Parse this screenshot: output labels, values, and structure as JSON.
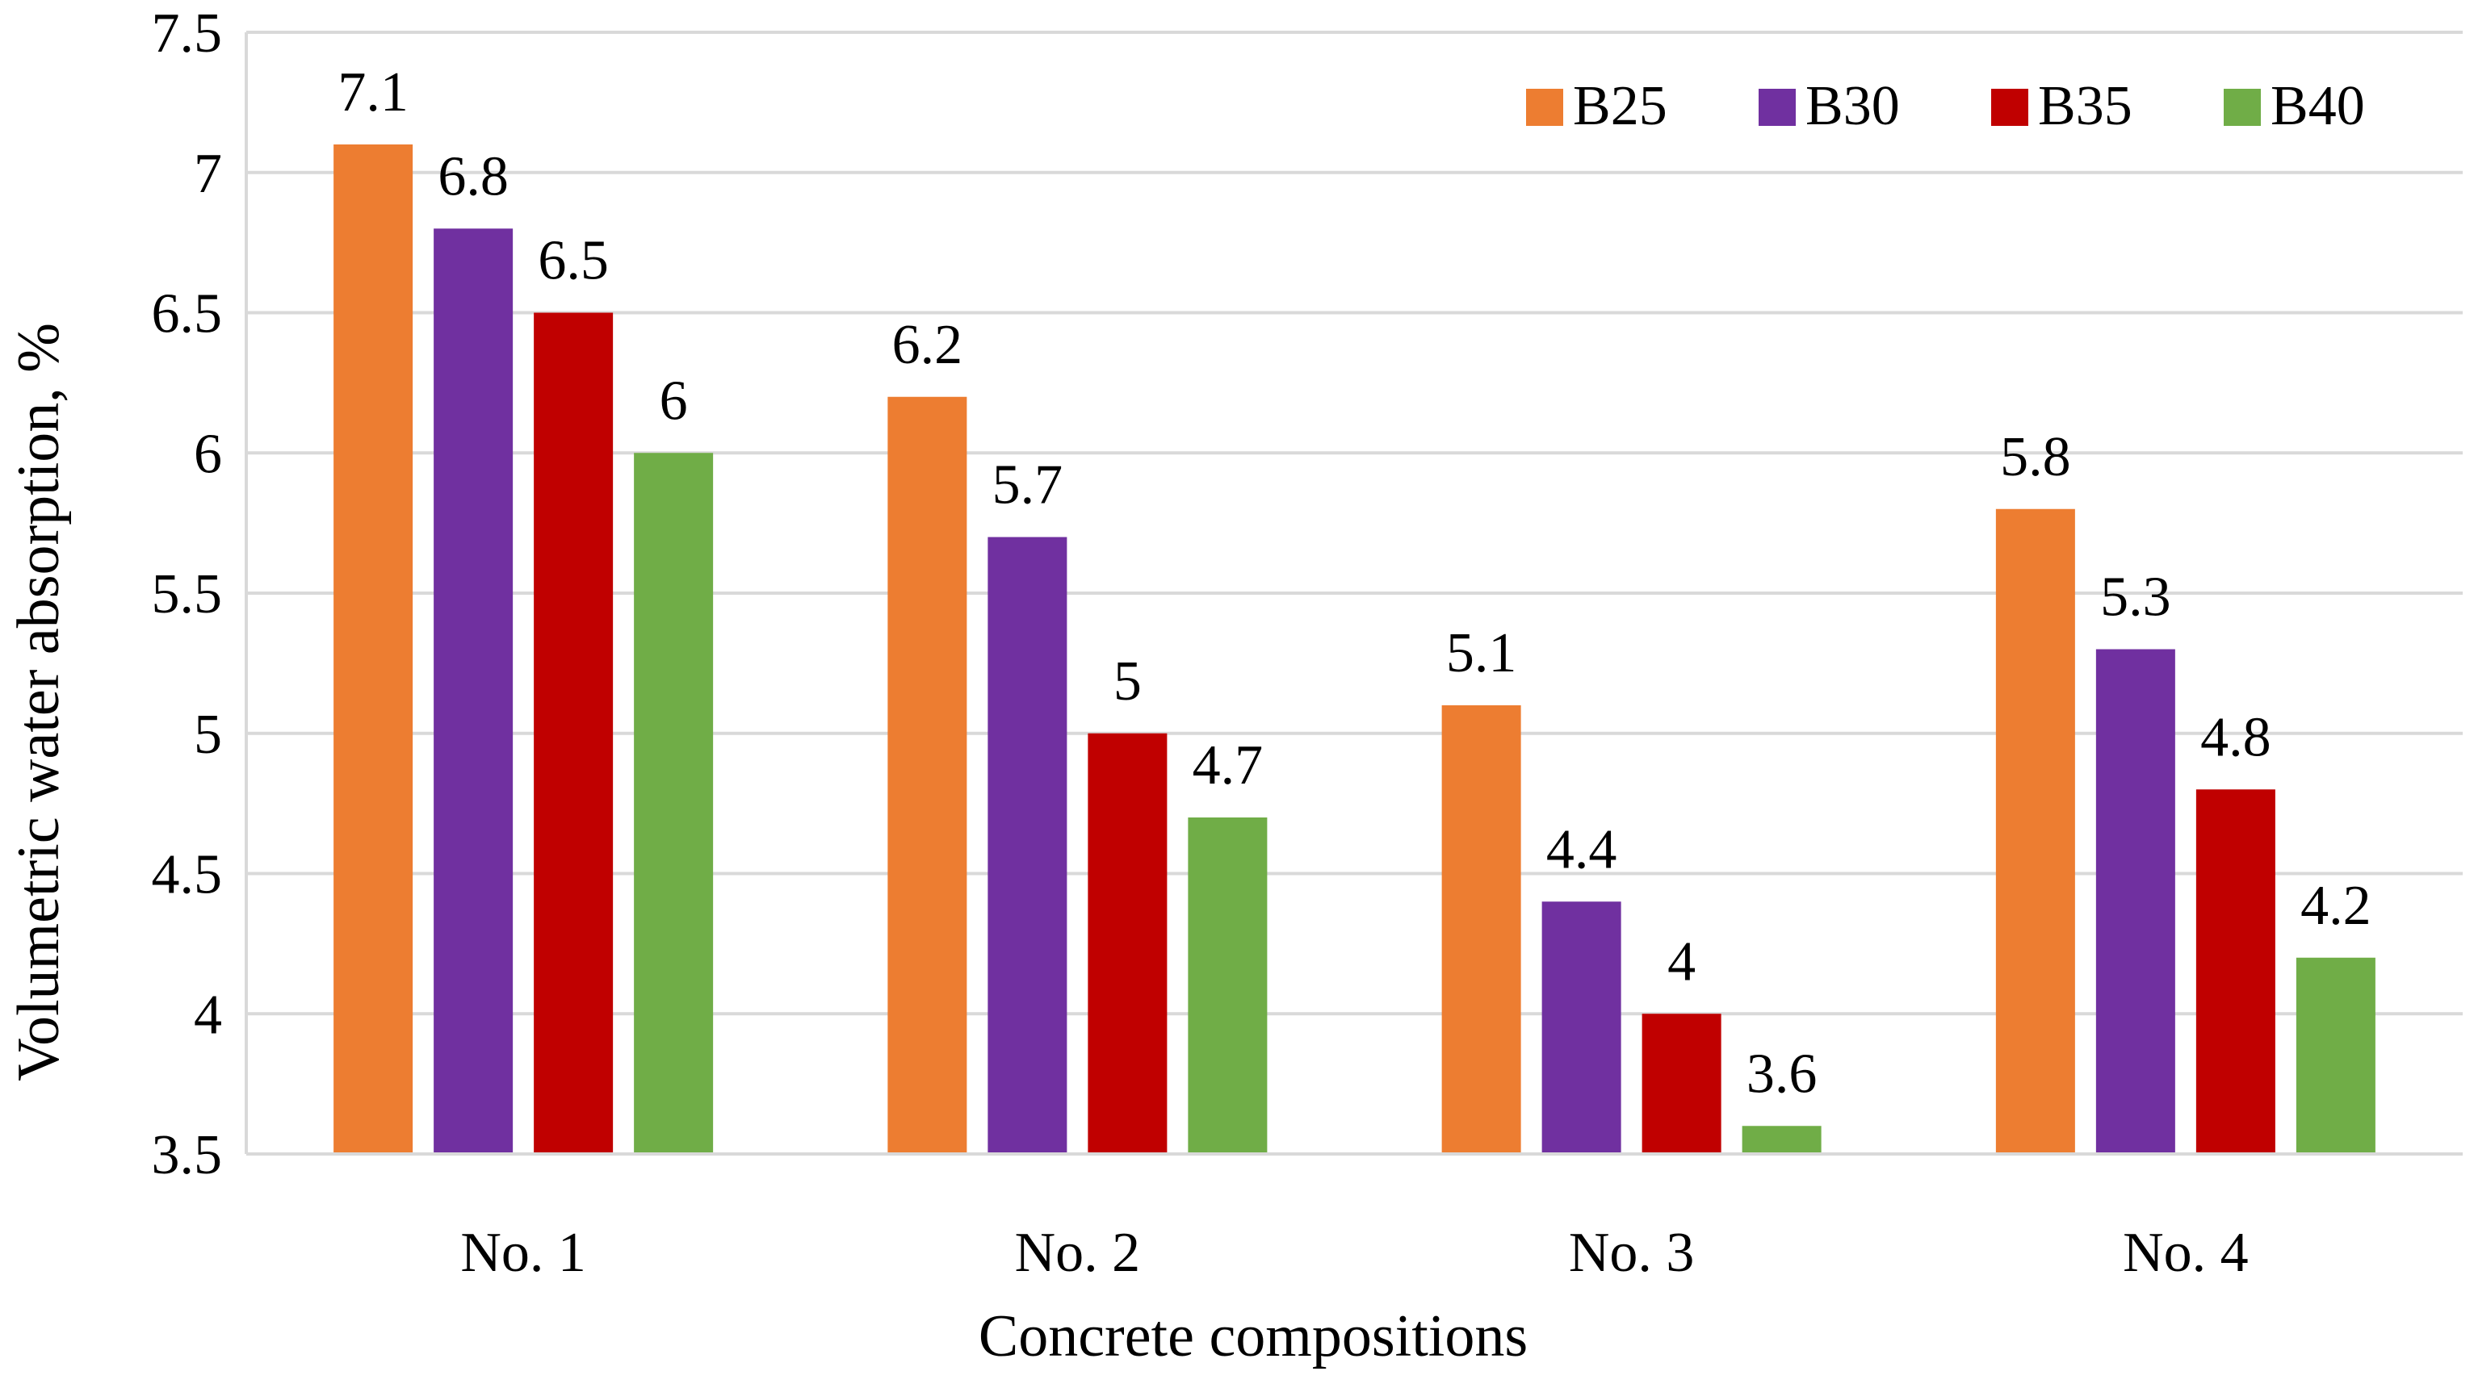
{
  "chart_data": {
    "type": "bar",
    "title": "",
    "xlabel": "Concrete compositions",
    "ylabel": "Volumetric water absorption, %",
    "categories": [
      "No. 1",
      "No. 2",
      "No. 3",
      "No. 4"
    ],
    "ylim": [
      3.5,
      7.5
    ],
    "yticks": [
      3.5,
      4,
      4.5,
      5,
      5.5,
      6,
      6.5,
      7,
      7.5
    ],
    "ytick_labels": [
      "3.5",
      "4",
      "4.5",
      "5",
      "5.5",
      "6",
      "6.5",
      "7",
      "7.5"
    ],
    "grid": true,
    "legend_position": "top-right",
    "series": [
      {
        "name": "B25",
        "color": "#ED7D31",
        "values": [
          7.1,
          6.2,
          5.1,
          5.8
        ],
        "labels": [
          "7.1",
          "6.2",
          "5.1",
          "5.8"
        ]
      },
      {
        "name": "B30",
        "color": "#7030A0",
        "values": [
          6.8,
          5.7,
          4.4,
          5.3
        ],
        "labels": [
          "6.8",
          "5.7",
          "4.4",
          "5.3"
        ]
      },
      {
        "name": "B35",
        "color": "#C00000",
        "values": [
          6.5,
          5.0,
          4.0,
          4.8
        ],
        "labels": [
          "6.5",
          "5",
          "4",
          "4.8"
        ]
      },
      {
        "name": "B40",
        "color": "#70AD47",
        "values": [
          6.0,
          4.7,
          3.6,
          4.2
        ],
        "labels": [
          "6",
          "4.7",
          "3.6",
          "4.2"
        ]
      }
    ]
  }
}
